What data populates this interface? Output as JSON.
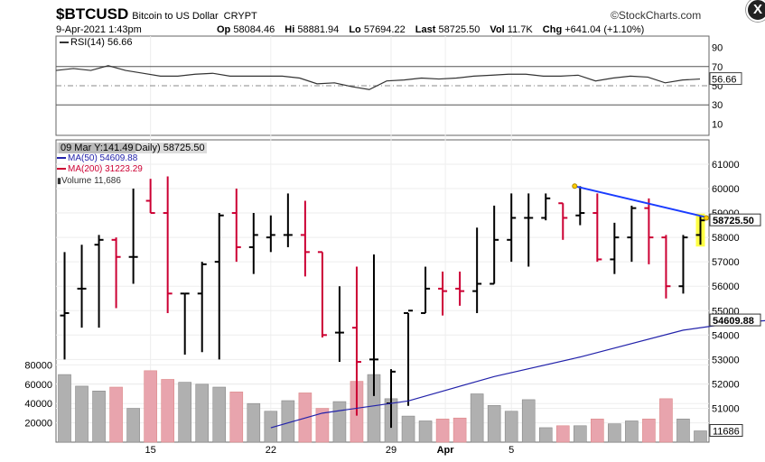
{
  "header": {
    "symbol": "$BTCUSD",
    "name": "Bitcoin to US Dollar",
    "exchange": "CRYPT",
    "brand": "©StockCharts.com",
    "date": "9-Apr-2021 1:43pm",
    "quote": {
      "open_label": "Op",
      "open": "58084.46",
      "high_label": "Hi",
      "high": "58881.94",
      "low_label": "Lo",
      "low": "57694.22",
      "last_label": "Last",
      "last": "58725.50",
      "vol_label": "Vol",
      "vol": "11.7K",
      "chg_label": "Chg",
      "chg": "+641.04 (+1.10%)"
    }
  },
  "close_button": "X",
  "rsi": {
    "label": "RSI(14) 56.66",
    "current_label": "56.66",
    "ticks": [
      "90",
      "70",
      "50",
      "30",
      "10"
    ]
  },
  "legend": {
    "hover": "09 Mar Y:141.49",
    "price_label": "Daily) 58725.50",
    "ma50": "MA(50) 54609.88",
    "ma200": "MA(200) 31223.29",
    "volume": "Volume 11,686"
  },
  "price_axis": [
    "61000",
    "60000",
    "59000",
    "58000",
    "57000",
    "56000",
    "55000",
    "54000",
    "53000",
    "52000",
    "51000"
  ],
  "volume_axis": [
    "80000",
    "60000",
    "40000",
    "20000"
  ],
  "x_ticks": [
    "15",
    "22",
    "29",
    "Apr",
    "5"
  ],
  "price_labels": {
    "last": "58725.50",
    "ma50": "54609.88",
    "volume": "11686"
  },
  "colors": {
    "up": "#000000",
    "down": "#cc0033",
    "vol_up": "#b0b0b0",
    "vol_down": "#e8a4ad",
    "ma50": "#2222aa",
    "trendline": "#1a3cff",
    "highlight": "#ffff44"
  },
  "chart_data": {
    "type": "ohlc",
    "series_ohlc": [
      {
        "o": 54800,
        "h": 57400,
        "l": 53000,
        "c": 54900,
        "vol": 70000
      },
      {
        "o": 55900,
        "h": 57700,
        "l": 54300,
        "c": 55900,
        "vol": 58000
      },
      {
        "o": 57700,
        "h": 58100,
        "l": 54300,
        "c": 57900,
        "vol": 53000
      },
      {
        "o": 57900,
        "h": 58000,
        "l": 55100,
        "c": 57200,
        "vol": 57000
      },
      {
        "o": 57200,
        "h": 60000,
        "l": 56100,
        "c": 57200,
        "vol": 35000
      },
      {
        "o": 59500,
        "h": 60400,
        "l": 59000,
        "c": 59000,
        "vol": 74000
      },
      {
        "o": 59000,
        "h": 60500,
        "l": 54900,
        "c": 55700,
        "vol": 65000
      },
      {
        "o": 55700,
        "h": 55700,
        "l": 53200,
        "c": 55700,
        "vol": 62000
      },
      {
        "o": 55700,
        "h": 57000,
        "l": 53300,
        "c": 56900,
        "vol": 60000
      },
      {
        "o": 57000,
        "h": 59000,
        "l": 53000,
        "c": 58900,
        "vol": 57000
      },
      {
        "o": 59000,
        "h": 60000,
        "l": 57000,
        "c": 57600,
        "vol": 52000
      },
      {
        "o": 57600,
        "h": 59000,
        "l": 56500,
        "c": 58100,
        "vol": 40000
      },
      {
        "o": 58000,
        "h": 58900,
        "l": 57400,
        "c": 58100,
        "vol": 32000
      },
      {
        "o": 58100,
        "h": 59800,
        "l": 57600,
        "c": 58100,
        "vol": 43000
      },
      {
        "o": 58100,
        "h": 59500,
        "l": 56400,
        "c": 57400,
        "vol": 51000
      },
      {
        "o": 57400,
        "h": 57400,
        "l": 53900,
        "c": 54000,
        "vol": 35000
      },
      {
        "o": 54100,
        "h": 56000,
        "l": 52900,
        "c": 54100,
        "vol": 42000
      },
      {
        "o": 54300,
        "h": 56800,
        "l": 50700,
        "c": 52900,
        "vol": 63000
      },
      {
        "o": 53000,
        "h": 57300,
        "l": 51500,
        "c": 53000,
        "vol": 70000
      },
      {
        "o": 51200,
        "h": 52600,
        "l": 50200,
        "c": 52500,
        "vol": 45000
      },
      {
        "o": 54900,
        "h": 54900,
        "l": 51100,
        "c": 55000,
        "vol": 27000
      },
      {
        "o": 54900,
        "h": 56800,
        "l": 54900,
        "c": 55900,
        "vol": 22000
      },
      {
        "o": 55900,
        "h": 56600,
        "l": 54800,
        "c": 55800,
        "vol": 24000
      },
      {
        "o": 55900,
        "h": 56600,
        "l": 55200,
        "c": 55800,
        "vol": 25000
      },
      {
        "o": 55800,
        "h": 58400,
        "l": 54900,
        "c": 56100,
        "vol": 50000
      },
      {
        "o": 56100,
        "h": 59300,
        "l": 56100,
        "c": 57900,
        "vol": 38000
      },
      {
        "o": 57900,
        "h": 59800,
        "l": 57000,
        "c": 58800,
        "vol": 32000
      },
      {
        "o": 58800,
        "h": 59800,
        "l": 56800,
        "c": 58800,
        "vol": 44000
      },
      {
        "o": 58800,
        "h": 59800,
        "l": 58700,
        "c": 59600,
        "vol": 15000
      },
      {
        "o": 59400,
        "h": 59400,
        "l": 57900,
        "c": 58800,
        "vol": 17000
      },
      {
        "o": 58900,
        "h": 60100,
        "l": 58500,
        "c": 59000,
        "vol": 17000
      },
      {
        "o": 59000,
        "h": 59800,
        "l": 57000,
        "c": 57100,
        "vol": 24000
      },
      {
        "o": 57100,
        "h": 58600,
        "l": 56500,
        "c": 58000,
        "vol": 19000
      },
      {
        "o": 58000,
        "h": 59300,
        "l": 57000,
        "c": 59200,
        "vol": 22000
      },
      {
        "o": 59200,
        "h": 59600,
        "l": 56900,
        "c": 58000,
        "vol": 24000
      },
      {
        "o": 58000,
        "h": 58100,
        "l": 55500,
        "c": 56000,
        "vol": 45000
      },
      {
        "o": 56000,
        "h": 58100,
        "l": 55700,
        "c": 58000,
        "vol": 24000
      },
      {
        "o": 58100,
        "h": 58900,
        "l": 57700,
        "c": 58700,
        "vol": 11686
      }
    ],
    "ma50": [
      [
        12,
        50200
      ],
      [
        15,
        50800
      ],
      [
        20,
        51300
      ],
      [
        25,
        52300
      ],
      [
        30,
        53100
      ],
      [
        36,
        54200
      ],
      [
        39,
        54500
      ],
      [
        41,
        54600
      ]
    ],
    "trendline": [
      [
        30,
        60100
      ],
      [
        41,
        58800
      ]
    ],
    "rsi_values": [
      66,
      68,
      66,
      71,
      66,
      63,
      60,
      60,
      62,
      63,
      60,
      60,
      60,
      60,
      58,
      52,
      53,
      49,
      46,
      55,
      56,
      58,
      57,
      58,
      60,
      61,
      62,
      62,
      60,
      60,
      61,
      55,
      58,
      60,
      59,
      53,
      56,
      57
    ],
    "price_range": [
      50700,
      61100
    ],
    "volume_range": [
      0,
      80000
    ],
    "rsi_range": [
      0,
      100
    ]
  }
}
